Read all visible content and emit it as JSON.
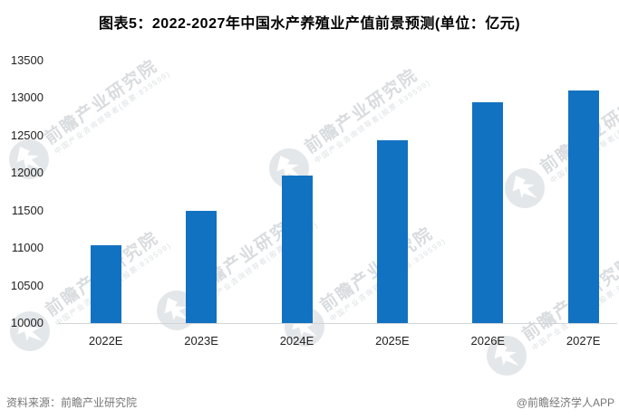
{
  "title": "图表5：2022-2027年中国水产养殖业产值前景预测(单位：亿元)",
  "chart_data": {
    "type": "bar",
    "categories": [
      "2022E",
      "2023E",
      "2024E",
      "2025E",
      "2026E",
      "2027E"
    ],
    "values": [
      11040,
      11490,
      11960,
      12430,
      12940,
      13100
    ],
    "title": "图表5：2022-2027年中国水产养殖业产值前景预测(单位：亿元)",
    "xlabel": "",
    "ylabel": "",
    "ylim": [
      10000,
      13500
    ],
    "yticks": [
      10000,
      10500,
      11000,
      11500,
      12000,
      12500,
      13000,
      13500
    ],
    "grid": false,
    "legend": null,
    "bar_color": "#1272C2"
  },
  "footer": {
    "source": "资料来源：前瞻产业研究院",
    "credit": "@前瞻经济学人APP"
  },
  "watermark": {
    "icon": "qianzhan-logo-icon",
    "text": "前瞻产业研究院",
    "subtext": "中国产业咨询领导者(股票:839599)"
  },
  "colors": {
    "bar": "#1272C2",
    "axis_line": "#d2d5d8",
    "tick_label": "#1f1f1f",
    "footer_text": "#767676",
    "watermark_text": "#d9dcdf"
  }
}
